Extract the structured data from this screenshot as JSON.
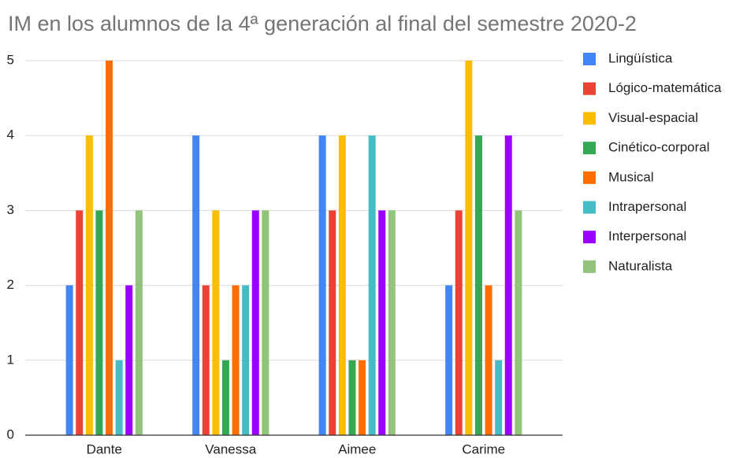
{
  "chart_data": {
    "type": "bar",
    "title": "IM en los alumnos de la 4ª generación  al final del semestre 2020-2",
    "categories": [
      "Dante",
      "Vanessa",
      "Aimee",
      "Carime"
    ],
    "series": [
      {
        "name": "Lingüística",
        "color": "#4285f4",
        "values": [
          2,
          4,
          4,
          2
        ]
      },
      {
        "name": "Lógico-matemática",
        "color": "#ea4335",
        "values": [
          3,
          2,
          3,
          3
        ]
      },
      {
        "name": "Visual-espacial",
        "color": "#fbbc04",
        "values": [
          4,
          3,
          4,
          5
        ]
      },
      {
        "name": "Cinético-corporal",
        "color": "#34a853",
        "values": [
          3,
          1,
          1,
          4
        ]
      },
      {
        "name": "Musical",
        "color": "#ff6d01",
        "values": [
          5,
          2,
          1,
          2
        ]
      },
      {
        "name": "Intrapersonal",
        "color": "#46bdc6",
        "values": [
          1,
          2,
          4,
          1
        ]
      },
      {
        "name": "Interpersonal",
        "color": "#9900ff",
        "values": [
          2,
          3,
          3,
          4
        ]
      },
      {
        "name": "Naturalista",
        "color": "#93c47d",
        "values": [
          3,
          3,
          3,
          3
        ]
      }
    ],
    "ylim": [
      0,
      5
    ],
    "yticks": [
      0,
      1,
      2,
      3,
      4,
      5
    ],
    "grid": true,
    "legend": "right"
  }
}
